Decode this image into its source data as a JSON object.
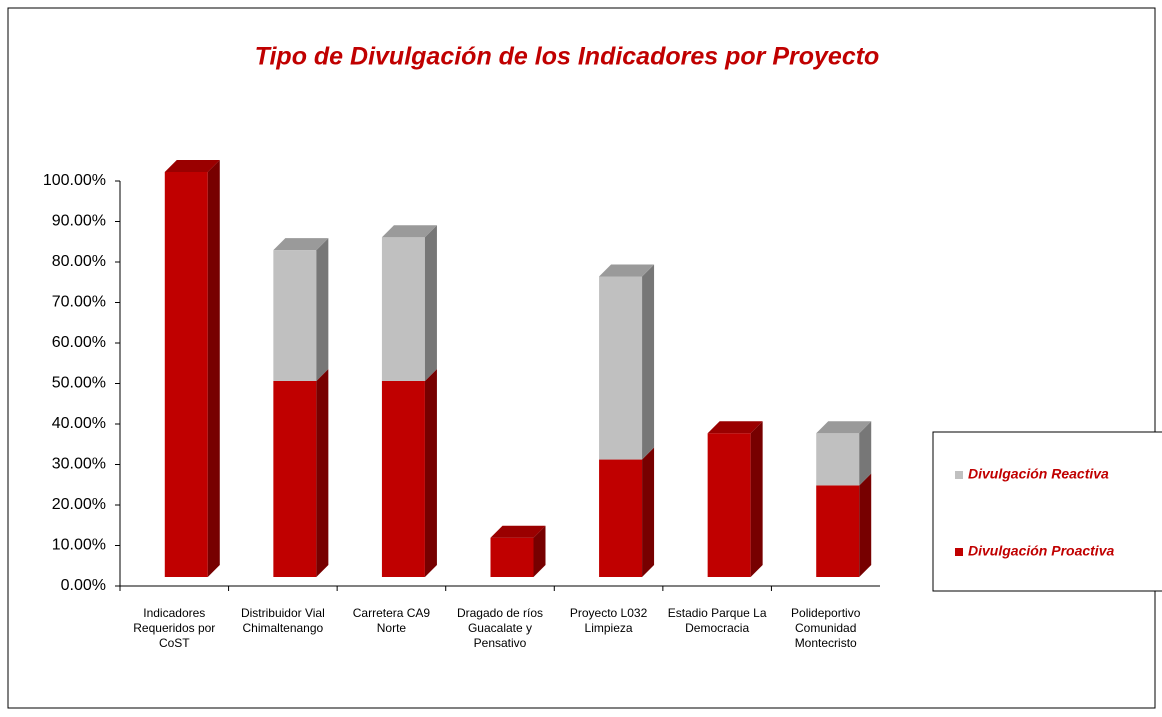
{
  "chart_data": {
    "type": "bar",
    "stacked": true,
    "title": "Tipo de Divulgación de los Indicadores por Proyecto",
    "categories": [
      "Indicadores Requeridos por CoST",
      "Distribuidor Vial Chimaltenango",
      "Carretera CA9 Norte",
      "Dragado de ríos Guacalate y Pensativo",
      "Proyecto L032 Limpieza",
      "Estadio Parque La Democracia",
      "Polideportivo Comunidad Montecristo"
    ],
    "series": [
      {
        "name": "Divulgación Proactiva",
        "color": "#c00000",
        "values": [
          100,
          48.4,
          48.4,
          9.7,
          29,
          35.5,
          22.6
        ]
      },
      {
        "name": "Divulgación Reactiva",
        "color": "#c0c0c0",
        "values": [
          0,
          32.3,
          35.5,
          0,
          45.2,
          0,
          12.9
        ]
      }
    ],
    "ylim": [
      0,
      100
    ],
    "yticks": [
      {
        "value": 0,
        "label": "0.00%"
      },
      {
        "value": 10,
        "label": "10.00%"
      },
      {
        "value": 20,
        "label": "20.00%"
      },
      {
        "value": 30,
        "label": "30.00%"
      },
      {
        "value": 40,
        "label": "40.00%"
      },
      {
        "value": 50,
        "label": "50.00%"
      },
      {
        "value": 60,
        "label": "60.00%"
      },
      {
        "value": 70,
        "label": "70.00%"
      },
      {
        "value": 80,
        "label": "80.00%"
      },
      {
        "value": 90,
        "label": "90.00%"
      },
      {
        "value": 100,
        "label": "100.00%"
      }
    ],
    "legend": "right"
  }
}
